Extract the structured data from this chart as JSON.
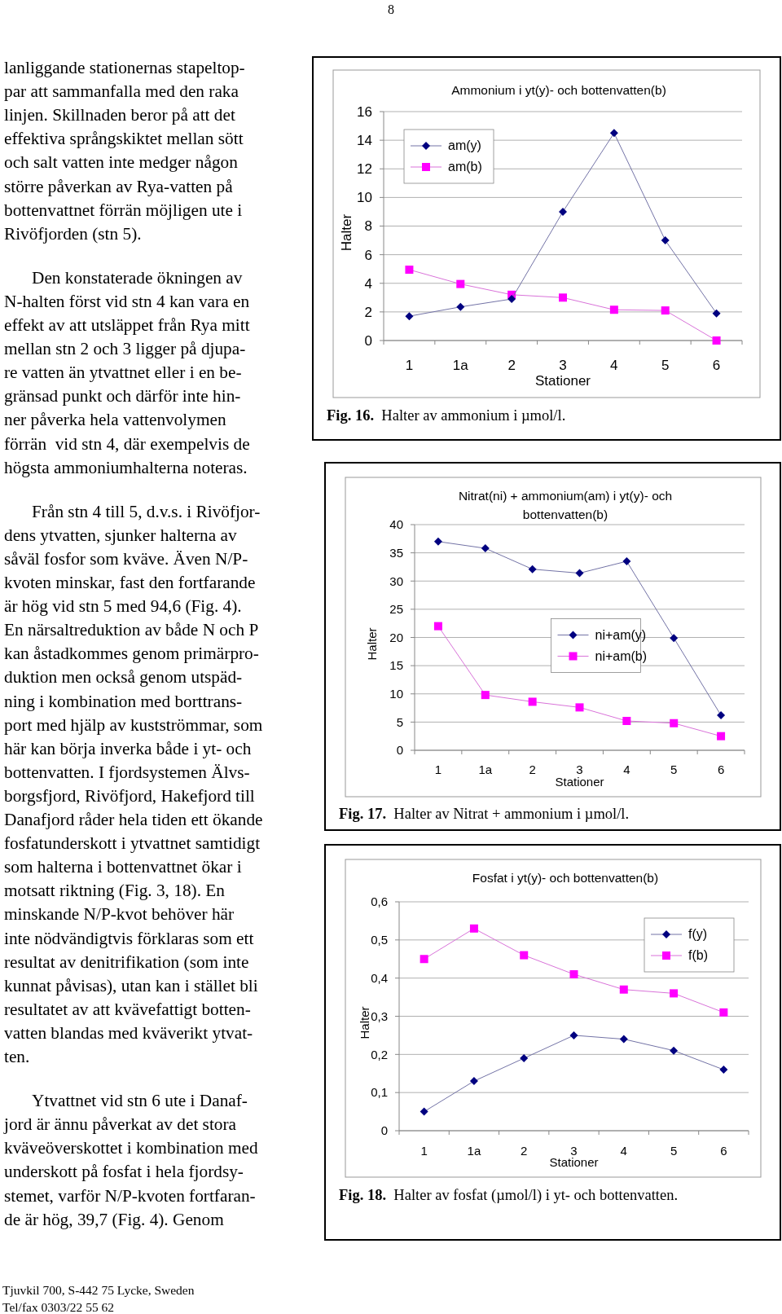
{
  "chart_data": [
    {
      "type": "line",
      "title": "Ammonium i yt(y)- och bottenvatten(b)",
      "xlabel": "Stationer",
      "ylabel": "Halter",
      "categories": [
        "1",
        "1a",
        "2",
        "3",
        "4",
        "5",
        "6"
      ],
      "ylim": [
        0,
        16
      ],
      "yticks": [
        0,
        2,
        4,
        6,
        8,
        10,
        12,
        14,
        16
      ],
      "grid": "y",
      "legend": "top left",
      "annotations": [
        "Fig. 16.  Halter av ammonium i µmol/l."
      ],
      "series": [
        {
          "name": "am(y)",
          "color": "#000080",
          "marker": "diamond",
          "values": [
            1.7,
            2.35,
            2.9,
            9.0,
            14.5,
            7.0,
            1.9
          ]
        },
        {
          "name": "am(b)",
          "color": "#ff00ff",
          "marker": "square",
          "values": [
            4.95,
            3.95,
            3.2,
            3.0,
            2.15,
            2.1,
            0.0
          ]
        }
      ]
    },
    {
      "type": "line",
      "title": "Nitrat(ni) + ammonium(am) i yt(y)- och bottenvatten(b)",
      "xlabel": "Stationer",
      "ylabel": "Halter",
      "categories": [
        "1",
        "1a",
        "2",
        "3",
        "4",
        "5",
        "6"
      ],
      "ylim": [
        0,
        40
      ],
      "yticks": [
        0,
        5,
        10,
        15,
        20,
        25,
        30,
        35,
        40
      ],
      "grid": "y",
      "legend": "center",
      "annotations": [
        "Fig. 17.  Halter av Nitrat + ammonium i µmol/l."
      ],
      "series": [
        {
          "name": "ni+am(y)",
          "color": "#000080",
          "marker": "diamond",
          "values": [
            37,
            35.8,
            32.1,
            31.4,
            33.5,
            19.9,
            6.2
          ]
        },
        {
          "name": "ni+am(b)",
          "color": "#ff00ff",
          "marker": "square",
          "values": [
            22,
            9.8,
            8.6,
            7.6,
            5.2,
            4.8,
            2.5
          ]
        }
      ]
    },
    {
      "type": "line",
      "title": "Fosfat i yt(y)- och bottenvatten(b)",
      "xlabel": "Stationer",
      "ylabel": "Halter",
      "categories": [
        "1",
        "1a",
        "2",
        "3",
        "4",
        "5",
        "6"
      ],
      "ylim": [
        0,
        0.6
      ],
      "yticks": [
        0,
        {
          "value": 0.1,
          "label": "0,1"
        },
        {
          "value": 0.2,
          "label": "0,2"
        },
        {
          "value": 0.3,
          "label": "0,3"
        },
        {
          "value": 0.4,
          "label": "0,4"
        },
        {
          "value": 0.5,
          "label": "0,5"
        },
        {
          "value": 0.6,
          "label": "0,6"
        }
      ],
      "grid": "y",
      "legend": "top right",
      "annotations": [
        "Fig. 18.  Halter av fosfat (µmol/l) i yt- och bottenvatten."
      ],
      "series": [
        {
          "name": "f(y)",
          "color": "#000080",
          "marker": "diamond",
          "values": [
            0.05,
            0.13,
            0.19,
            0.25,
            0.24,
            0.21,
            0.16
          ]
        },
        {
          "name": "f(b)",
          "color": "#ff00ff",
          "marker": "square",
          "values": [
            0.45,
            0.53,
            0.46,
            0.41,
            0.37,
            0.36,
            0.31
          ]
        }
      ]
    },
    {
      "type": "other",
      "annotations": [
        "8",
        "lanliggande stationernas stapeltop-\npar att sammanfalla med den raka\nlinjen. Skillnaden beror på att det\neffektiva språngskiktet mellan sött\noch salt vatten inte medger någon\nstörre påverkan av Rya-vatten på\nbottenvattnet förrän möjligen ute i\nRivöfjorden (stn 5).",
        "Den konstaterade ökningen av\nN-halten först vid stn 4 kan vara en\neffekt av att utsläppet från Rya mitt\nmellan stn 2 och 3 ligger på djupa-\nre vatten än ytvattnet eller i en be-\ngränsad punkt och därför inte hin-\nner påverka hela vattenvolymen\nförrän  vid stn 4, där exempelvis de\nhögsta ammoniumhalterna noteras.",
        "Från stn 4 till 5, d.v.s. i Rivöfjor-\ndens ytvatten, sjunker halterna av\nsåväl fosfor som kväve. Även N/P-\nkvoten minskar, fast den fortfarande\när hög vid stn 5 med 94,6 (Fig. 4).\nEn närsaltreduktion av både N och P\nkan åstadkommes genom primärpro-\nduktion men också genom utspäd-\nning i kombination med borttrans-\nport med hjälp av kustströmmar, som\nhär kan börja inverka både i yt- och\nbottenvatten. I fjordsystemen Älvs-\nborgsfjord, Rivöfjord, Hakefjord till\nDanafjord råder hela tiden ett ökande\nfosfatunderskott i ytvattnet samtidigt\nsom halterna i bottenvattnet ökar i\nmotsatt riktning (Fig. 3, 18). En\nminskande N/P-kvot behöver här\ninte nödvändigtvis förklaras som ett\nresultat av denitrifikation (som inte\nkunnat påvisas), utan kan i stället bli\nresultatet av att kvävefattigt botten-\nvatten blandas med kväverikt ytvat-\nten.",
        "Ytvattnet vid stn 6 ute i Danaf-\njord är ännu påverkat av det stora\nkväveöverskottet i kombination med\nunderskott på fosfat i hela fjordsy-\nstemet, varför N/P-kvoten fortfaran-\nde är hög, 39,7 (Fig. 4). Genom",
        "Tjuvkil 700, S-442 75 Lycke, Sweden",
        "Tel/fax 0303/22 55 62"
      ]
    }
  ]
}
